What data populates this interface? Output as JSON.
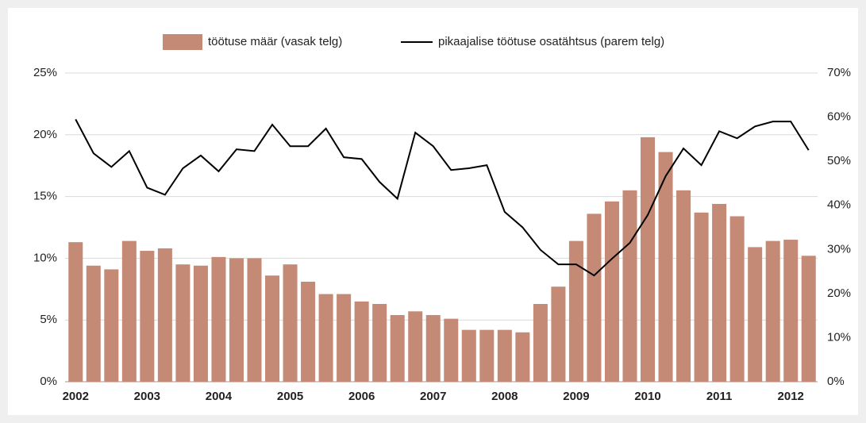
{
  "chart_data": {
    "type": "bar",
    "categories": [
      "2002",
      null,
      null,
      null,
      "2003",
      null,
      null,
      null,
      "2004",
      null,
      null,
      null,
      "2005",
      null,
      null,
      null,
      "2006",
      null,
      null,
      null,
      "2007",
      null,
      null,
      null,
      "2008",
      null,
      null,
      null,
      "2009",
      null,
      null,
      null,
      "2010",
      null,
      null,
      null,
      "2011",
      null,
      null,
      null,
      "2012",
      null
    ],
    "series": [
      {
        "name": "töötuse määr (vasak telg)",
        "type": "bar",
        "color": "#c48a76",
        "axis": "y",
        "values": [
          11.3,
          9.4,
          9.1,
          11.4,
          10.6,
          10.8,
          9.5,
          9.4,
          10.1,
          10.0,
          10.0,
          8.6,
          9.5,
          8.1,
          7.1,
          7.1,
          6.5,
          6.3,
          5.4,
          5.7,
          5.4,
          5.1,
          4.2,
          4.2,
          4.2,
          4.0,
          6.3,
          7.7,
          11.4,
          13.6,
          14.6,
          15.5,
          19.8,
          18.6,
          15.5,
          13.7,
          14.4,
          13.4,
          10.9,
          11.4,
          11.5,
          10.2
        ]
      },
      {
        "name": "pikaajalise töötuse osatähtsus (parem telg)",
        "type": "line",
        "color": "#000000",
        "axis": "y2",
        "values": [
          59.5,
          51.8,
          48.7,
          52.3,
          44.0,
          42.4,
          48.4,
          51.3,
          47.7,
          52.7,
          52.3,
          58.3,
          53.4,
          53.4,
          57.4,
          50.9,
          50.5,
          45.3,
          41.5,
          56.5,
          53.4,
          48.0,
          48.4,
          49.1,
          38.5,
          35.0,
          29.9,
          26.6,
          26.6,
          24.1,
          27.9,
          31.5,
          37.8,
          46.6,
          52.9,
          49.1,
          56.8,
          55.2,
          57.9,
          59.0,
          59.0,
          52.5
        ]
      }
    ],
    "ylim": [
      0,
      25
    ],
    "yticks": [
      {
        "value": 0,
        "label": "0%"
      },
      {
        "value": 5,
        "label": "5%"
      },
      {
        "value": 10,
        "label": "10%"
      },
      {
        "value": 15,
        "label": "15%"
      },
      {
        "value": 20,
        "label": "20%"
      },
      {
        "value": 25,
        "label": "25%"
      }
    ],
    "y2lim": [
      0,
      70
    ],
    "y2ticks": [
      {
        "value": 0,
        "label": "0%"
      },
      {
        "value": 10,
        "label": "10%"
      },
      {
        "value": 20,
        "label": "20%"
      },
      {
        "value": 30,
        "label": "30%"
      },
      {
        "value": 40,
        "label": "40%"
      },
      {
        "value": 50,
        "label": "50%"
      },
      {
        "value": 60,
        "label": "60%"
      },
      {
        "value": 70,
        "label": "70%"
      }
    ],
    "grid": true,
    "legend": "top"
  }
}
